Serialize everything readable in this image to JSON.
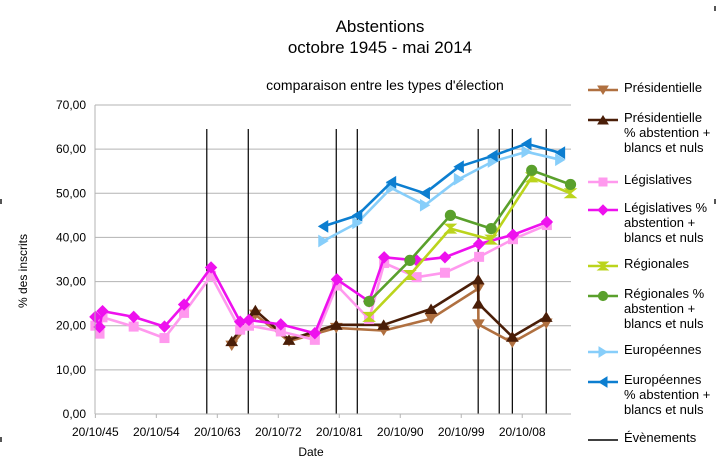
{
  "chart_data": {
    "type": "line",
    "title": "Abstentions",
    "subtitle": "octobre 1945 - mai 2014",
    "chart_heading": "comparaison entre les types d'élection",
    "xlabel": "Date",
    "ylabel": "% des inscrits",
    "ylim": [
      0,
      70
    ],
    "yticks": [
      "0,00",
      "10,00",
      "20,00",
      "30,00",
      "40,00",
      "50,00",
      "60,00",
      "70,00"
    ],
    "xticks": [
      "20/10/45",
      "20/10/54",
      "20/10/63",
      "20/10/72",
      "20/10/81",
      "20/10/90",
      "20/10/99",
      "20/10/08"
    ],
    "xlim": [
      "1945-10-01",
      "2016-01-01"
    ],
    "grid": "horizontal",
    "legend_position": "right",
    "events": [
      "1962-04-01",
      "1968-05-15",
      "1981-05-10",
      "1984-06-17",
      "2002-04-21",
      "2005-05-29",
      "2007-05-06",
      "2012-05-06"
    ],
    "events_label": "Évènements",
    "series": [
      {
        "name": "Présidentielle",
        "color": "#b07040",
        "marker": "triangle-down",
        "x": [
          "1965-12-05",
          "1969-06-01",
          "1974-05-19",
          "1981-05-10",
          "1988-05-08",
          "1995-05-07",
          "2002-04-21",
          "2002-05-05",
          "2007-05-06",
          "2012-05-06"
        ],
        "y": [
          15.5,
          22.5,
          16.5,
          19.5,
          18.9,
          21.6,
          28.4,
          20.3,
          16.2,
          20.5
        ]
      },
      {
        "name": "Présidentielle % abstention + blancs et nuls",
        "color": "#4a1e08",
        "marker": "triangle-up",
        "x": [
          "1965-12-05",
          "1969-06-01",
          "1974-05-19",
          "1981-05-10",
          "1988-05-08",
          "1995-05-07",
          "2002-04-21",
          "2002-05-05",
          "2007-05-06",
          "2012-05-06"
        ],
        "y": [
          16.5,
          23.5,
          16.8,
          20.2,
          20.2,
          23.8,
          30.5,
          25.0,
          17.5,
          22.0
        ]
      },
      {
        "name": "Législatives",
        "color": "#ff99ee",
        "marker": "square",
        "x": [
          "1945-10-21",
          "1946-06-02",
          "1946-11-10",
          "1951-06-17",
          "1956-01-02",
          "1958-11-23",
          "1962-11-18",
          "1967-03-05",
          "1968-06-23",
          "1973-03-04",
          "1978-03-12",
          "1981-06-14",
          "1986-03-16",
          "1988-06-05",
          "1993-03-21",
          "1997-05-25",
          "2002-06-09",
          "2007-06-10",
          "2012-06-10"
        ],
        "y": [
          20.0,
          18.2,
          21.9,
          19.8,
          17.2,
          22.9,
          31.3,
          19.1,
          20.0,
          18.7,
          16.8,
          29.1,
          21.5,
          34.2,
          31.0,
          32.0,
          35.6,
          39.6,
          42.8
        ]
      },
      {
        "name": "Législatives % abstention + blancs et nuls",
        "color": "#ee11ee",
        "marker": "diamond",
        "x": [
          "1945-10-21",
          "1946-06-02",
          "1946-11-10",
          "1951-06-17",
          "1956-01-02",
          "1958-11-23",
          "1962-11-18",
          "1967-03-05",
          "1968-06-23",
          "1973-03-04",
          "1978-03-12",
          "1981-06-14",
          "1986-03-16",
          "1988-06-05",
          "1993-03-21",
          "1997-05-25",
          "2002-06-09",
          "2007-06-10",
          "2012-06-10"
        ],
        "y": [
          22.0,
          19.7,
          23.3,
          22.0,
          19.8,
          24.8,
          33.2,
          20.9,
          21.3,
          20.3,
          18.3,
          30.5,
          25.5,
          35.5,
          34.8,
          35.5,
          38.5,
          40.6,
          43.5
        ]
      },
      {
        "name": "Régionales",
        "color": "#bbd41c",
        "marker": "hourglass",
        "x": [
          "1986-03-16",
          "1992-03-22",
          "1998-03-15",
          "2004-03-21",
          "2010-03-14",
          "2015-12-06"
        ],
        "y": [
          22.0,
          31.5,
          42.0,
          39.5,
          53.6,
          50.0
        ]
      },
      {
        "name": "Régionales % abstention + blancs et nuls",
        "color": "#5aa02c",
        "marker": "circle",
        "x": [
          "1986-03-16",
          "1992-03-22",
          "1998-03-15",
          "2004-03-21",
          "2010-03-14",
          "2015-12-06"
        ],
        "y": [
          25.5,
          34.8,
          45.0,
          42.0,
          55.2,
          52.0
        ]
      },
      {
        "name": "Européennes",
        "color": "#87cefa",
        "marker": "triangle-right",
        "x": [
          "1979-06-10",
          "1984-06-17",
          "1989-06-18",
          "1994-06-12",
          "1999-06-13",
          "2004-06-13",
          "2009-06-07",
          "2014-05-25"
        ],
        "y": [
          39.2,
          43.3,
          51.2,
          47.3,
          53.2,
          57.2,
          59.4,
          57.6
        ]
      },
      {
        "name": "Européennes % abstention + blancs et nuls",
        "color": "#0c7ed0",
        "marker": "triangle-left",
        "x": [
          "1979-06-10",
          "1984-06-17",
          "1989-06-18",
          "1994-06-12",
          "1999-06-13",
          "2004-06-13",
          "2009-06-07",
          "2014-05-25"
        ],
        "y": [
          42.5,
          45.0,
          52.5,
          50.0,
          56.0,
          58.5,
          61.2,
          59.2
        ]
      }
    ]
  }
}
